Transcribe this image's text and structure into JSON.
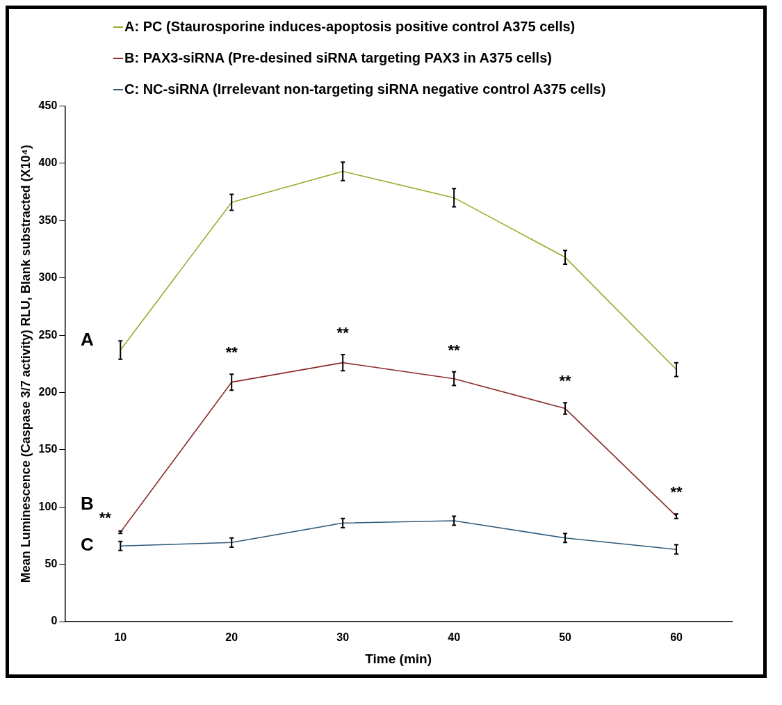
{
  "chart_data": {
    "type": "line",
    "xlabel": "Time (min)",
    "ylabel": "Mean Luminescence (Caspase 3/7 activity) RLU, Blank substracted (X10⁴)",
    "categories": [
      "10",
      "20",
      "30",
      "40",
      "50",
      "60"
    ],
    "series": [
      {
        "name": "A: PC (Staurosporine induces-apoptosis positive control A375 cells)",
        "color": "#9aab2e",
        "values": [
          237,
          366,
          393,
          370,
          318,
          220
        ],
        "errors": [
          8,
          7,
          8,
          8,
          6,
          6
        ]
      },
      {
        "name": "B: PAX3-siRNA (Pre-desined siRNA targeting PAX3 in A375 cells)",
        "color": "#8b2b2b",
        "values": [
          78,
          209,
          226,
          212,
          186,
          92
        ],
        "errors": [
          1,
          7,
          7,
          6,
          5,
          2
        ]
      },
      {
        "name": "C: NC-siRNA (Irrelevant non-targeting siRNA negative control A375 cells)",
        "color": "#2f5a7a",
        "values": [
          66,
          69,
          86,
          88,
          73,
          63
        ],
        "errors": [
          4,
          4,
          4,
          4,
          4,
          4
        ]
      }
    ],
    "ylim": [
      0,
      450
    ],
    "yticks": [
      0,
      50,
      100,
      150,
      200,
      250,
      300,
      350,
      400,
      450
    ],
    "grid": false,
    "legend": "top left",
    "marker": "none",
    "line_style": "solid",
    "annotations": [
      "A",
      "B",
      "C",
      "**",
      "**",
      "**",
      "**",
      "**",
      "**"
    ]
  }
}
